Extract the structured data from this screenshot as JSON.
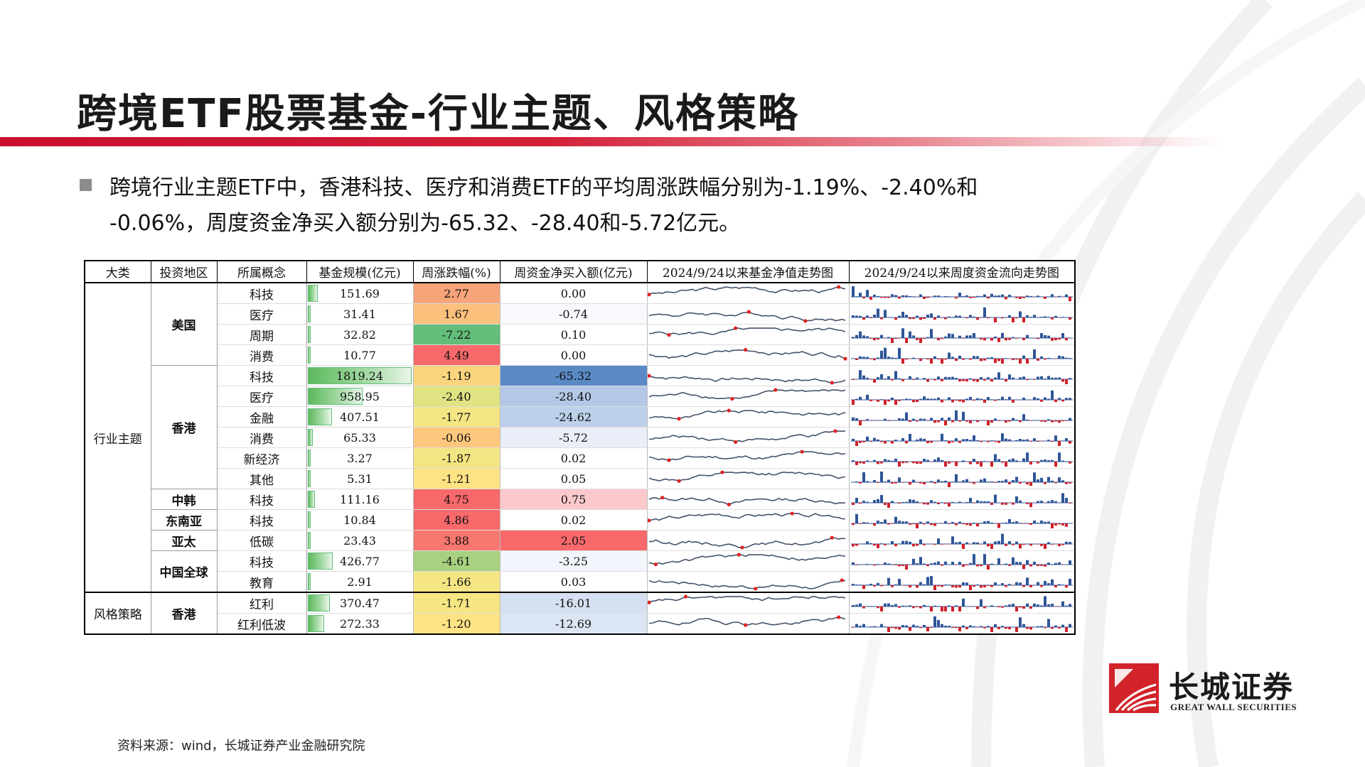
{
  "page": {
    "title": "跨境ETF股票基金-行业主题、风格策略",
    "bullet_line1": "跨境行业主题ETF中，香港科技、医疗和消费ETF的平均周涨跌幅分别为-1.19%、-2.40%和",
    "bullet_line2": "-0.06%，周度资金净买入额分别为-65.32、-28.40和-5.72亿元。",
    "source": "资料来源：wind，长城证券产业金融研究院"
  },
  "logo": {
    "name_cn": "长城证券",
    "name_en": "GREAT WALL SECURITIES",
    "color": "#d2232a"
  },
  "table": {
    "headers": [
      "大类",
      "投资地区",
      "所属概念",
      "基金规模(亿元)",
      "周涨跌幅(%)",
      "周资金净买入额(亿元)",
      "2024/9/24以来基金净值走势图",
      "2024/9/24以来周度资金流向走势图"
    ],
    "max_size": 1819.24,
    "rows": [
      {
        "cat": "行业主题",
        "region": "美国",
        "concept": "科技",
        "size": "151.69",
        "size_v": 151.69,
        "chg": "2.77",
        "chg_color": "#f7a47a",
        "flow": "0.00",
        "flow_color": "#ffffff"
      },
      {
        "cat": "",
        "region": "",
        "concept": "医疗",
        "size": "31.41",
        "size_v": 31.41,
        "chg": "1.67",
        "chg_color": "#fbc17c",
        "flow": "-0.74",
        "flow_color": "#f7f9fd"
      },
      {
        "cat": "",
        "region": "",
        "concept": "周期",
        "size": "32.82",
        "size_v": 32.82,
        "chg": "-7.22",
        "chg_color": "#63be7b",
        "flow": "0.10",
        "flow_color": "#ffffff"
      },
      {
        "cat": "",
        "region": "",
        "concept": "消费",
        "size": "10.77",
        "size_v": 10.77,
        "chg": "4.49",
        "chg_color": "#f8696b",
        "flow": "0.00",
        "flow_color": "#ffffff"
      },
      {
        "cat": "",
        "region": "香港",
        "concept": "科技",
        "size": "1819.24",
        "size_v": 1819.24,
        "chg": "-1.19",
        "chg_color": "#fbd57e",
        "flow": "-65.32",
        "flow_color": "#5a8ac6"
      },
      {
        "cat": "",
        "region": "",
        "concept": "医疗",
        "size": "958.95",
        "size_v": 958.95,
        "chg": "-2.40",
        "chg_color": "#dfe382",
        "flow": "-28.40",
        "flow_color": "#b4c8e6"
      },
      {
        "cat": "",
        "region": "",
        "concept": "金融",
        "size": "407.51",
        "size_v": 407.51,
        "chg": "-1.77",
        "chg_color": "#f4e683",
        "flow": "-24.62",
        "flow_color": "#bdd0ea"
      },
      {
        "cat": "",
        "region": "",
        "concept": "消费",
        "size": "65.33",
        "size_v": 65.33,
        "chg": "-0.06",
        "chg_color": "#fdc87d",
        "flow": "-5.72",
        "flow_color": "#e9eef8"
      },
      {
        "cat": "",
        "region": "",
        "concept": "新经济",
        "size": "3.27",
        "size_v": 3.27,
        "chg": "-1.87",
        "chg_color": "#f2e583",
        "flow": "0.02",
        "flow_color": "#ffffff"
      },
      {
        "cat": "",
        "region": "",
        "concept": "其他",
        "size": "5.31",
        "size_v": 5.31,
        "chg": "-1.21",
        "chg_color": "#fde383",
        "flow": "0.05",
        "flow_color": "#ffffff"
      },
      {
        "cat": "",
        "region": "中韩",
        "concept": "科技",
        "size": "111.16",
        "size_v": 111.16,
        "chg": "4.75",
        "chg_color": "#f8696b",
        "flow": "0.75",
        "flow_color": "#fbc9cc"
      },
      {
        "cat": "",
        "region": "东南亚",
        "concept": "科技",
        "size": "10.84",
        "size_v": 10.84,
        "chg": "4.86",
        "chg_color": "#f8696b",
        "flow": "0.02",
        "flow_color": "#ffffff"
      },
      {
        "cat": "",
        "region": "亚太",
        "concept": "低碳",
        "size": "23.43",
        "size_v": 23.43,
        "chg": "3.88",
        "chg_color": "#f8776e",
        "flow": "2.05",
        "flow_color": "#f8696b"
      },
      {
        "cat": "",
        "region": "中国全球",
        "concept": "科技",
        "size": "426.77",
        "size_v": 426.77,
        "chg": "-4.61",
        "chg_color": "#a8d27f",
        "flow": "-3.25",
        "flow_color": "#f2f5fb"
      },
      {
        "cat": "",
        "region": "",
        "concept": "教育",
        "size": "2.91",
        "size_v": 2.91,
        "chg": "-1.66",
        "chg_color": "#f6e683",
        "flow": "0.03",
        "flow_color": "#ffffff"
      },
      {
        "cat": "风格策略",
        "region": "香港",
        "concept": "红利",
        "size": "370.47",
        "size_v": 370.47,
        "chg": "-1.71",
        "chg_color": "#f5e683",
        "flow": "-16.01",
        "flow_color": "#d5e0f1"
      },
      {
        "cat": "",
        "region": "",
        "concept": "红利低波",
        "size": "272.33",
        "size_v": 272.33,
        "chg": "-1.20",
        "chg_color": "#fde383",
        "flow": "-12.69",
        "flow_color": "#dce5f3"
      }
    ]
  }
}
